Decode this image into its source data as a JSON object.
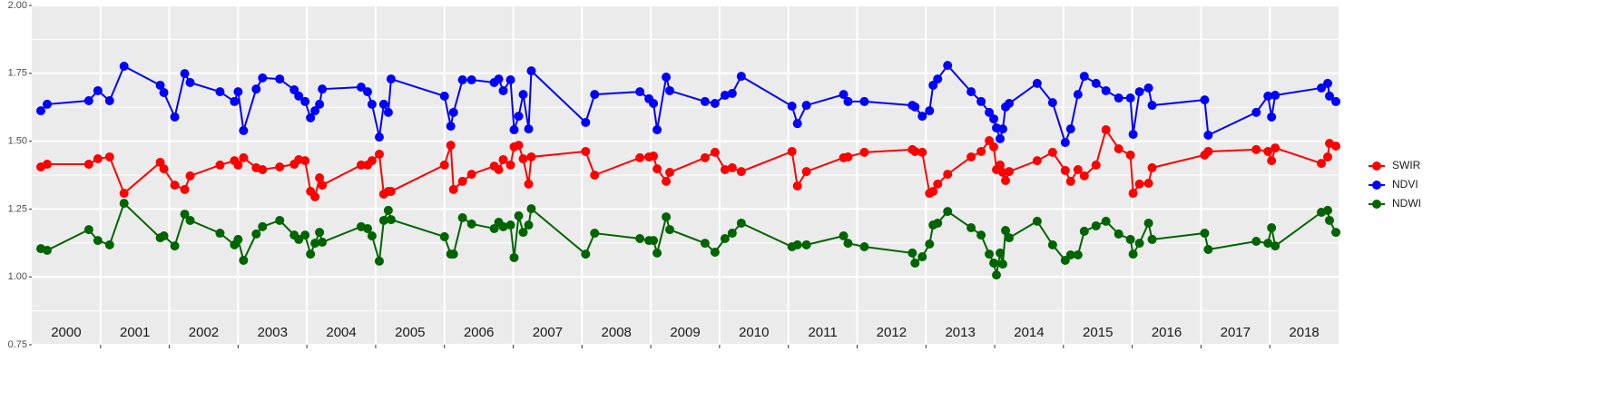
{
  "chart_data": {
    "type": "line",
    "x": [
      2000.132,
      2000.224,
      2000.829,
      2000.961,
      2001.132,
      2001.342,
      2001.868,
      2001.921,
      2002.079,
      2002.224,
      2002.303,
      2002.737,
      2002.947,
      2003.0,
      2003.079,
      2003.263,
      2003.355,
      2003.605,
      2003.816,
      2003.882,
      2003.974,
      2004.053,
      2004.118,
      2004.184,
      2004.224,
      2004.789,
      2004.882,
      2004.947,
      2005.053,
      2005.118,
      2005.184,
      2005.224,
      2006.0,
      2006.092,
      2006.132,
      2006.263,
      2006.395,
      2006.724,
      2006.789,
      2006.855,
      2006.961,
      2007.013,
      2007.079,
      2007.145,
      2007.224,
      2007.263,
      2008.053,
      2008.184,
      2008.842,
      2008.974,
      2009.039,
      2009.092,
      2009.224,
      2009.276,
      2009.789,
      2009.934,
      2010.079,
      2010.184,
      2010.316,
      2011.053,
      2011.132,
      2011.263,
      2011.803,
      2011.868,
      2012.105,
      2012.803,
      2012.842,
      2012.947,
      2013.053,
      2013.105,
      2013.171,
      2013.316,
      2013.658,
      2013.803,
      2013.921,
      2013.987,
      2014.026,
      2014.079,
      2014.118,
      2014.158,
      2014.211,
      2014.618,
      2014.842,
      2015.026,
      2015.105,
      2015.211,
      2015.303,
      2015.474,
      2015.618,
      2015.803,
      2015.974,
      2016.013,
      2016.105,
      2016.237,
      2016.289,
      2017.053,
      2017.105,
      2017.803,
      2017.974,
      2018.026,
      2018.079,
      2018.75,
      2018.842,
      2018.868,
      2018.961
    ],
    "series": [
      {
        "name": "SWIR",
        "color": "#ff0000",
        "values": [
          1.405,
          1.415,
          1.415,
          1.435,
          1.442,
          1.308,
          1.422,
          1.398,
          1.338,
          1.322,
          1.372,
          1.412,
          1.428,
          1.412,
          1.439,
          1.402,
          1.395,
          1.405,
          1.415,
          1.432,
          1.428,
          1.315,
          1.295,
          1.365,
          1.338,
          1.412,
          1.412,
          1.428,
          1.452,
          1.305,
          1.315,
          1.315,
          1.412,
          1.485,
          1.322,
          1.352,
          1.378,
          1.408,
          1.395,
          1.432,
          1.412,
          1.479,
          1.485,
          1.435,
          1.342,
          1.442,
          1.462,
          1.375,
          1.439,
          1.442,
          1.445,
          1.398,
          1.352,
          1.385,
          1.439,
          1.459,
          1.395,
          1.402,
          1.388,
          1.462,
          1.335,
          1.388,
          1.439,
          1.442,
          1.459,
          1.469,
          1.462,
          1.459,
          1.308,
          1.315,
          1.342,
          1.378,
          1.442,
          1.462,
          1.502,
          1.479,
          1.395,
          1.412,
          1.385,
          1.355,
          1.388,
          1.428,
          1.459,
          1.392,
          1.352,
          1.395,
          1.372,
          1.412,
          1.542,
          1.472,
          1.449,
          1.308,
          1.342,
          1.345,
          1.402,
          1.449,
          1.462,
          1.469,
          1.462,
          1.428,
          1.475,
          1.418,
          1.442,
          1.492,
          1.482
        ]
      },
      {
        "name": "NDVI",
        "color": "#0000ff",
        "values": [
          1.612,
          1.636,
          1.649,
          1.686,
          1.649,
          1.776,
          1.706,
          1.679,
          1.589,
          1.749,
          1.716,
          1.682,
          1.646,
          1.682,
          1.539,
          1.692,
          1.733,
          1.729,
          1.689,
          1.666,
          1.646,
          1.586,
          1.612,
          1.636,
          1.692,
          1.699,
          1.682,
          1.636,
          1.515,
          1.636,
          1.606,
          1.729,
          1.666,
          1.555,
          1.606,
          1.726,
          1.726,
          1.716,
          1.729,
          1.686,
          1.726,
          1.542,
          1.592,
          1.672,
          1.545,
          1.759,
          1.569,
          1.672,
          1.682,
          1.656,
          1.639,
          1.542,
          1.736,
          1.686,
          1.646,
          1.639,
          1.669,
          1.676,
          1.739,
          1.629,
          1.565,
          1.632,
          1.672,
          1.646,
          1.646,
          1.632,
          1.626,
          1.592,
          1.612,
          1.706,
          1.729,
          1.779,
          1.682,
          1.646,
          1.606,
          1.582,
          1.549,
          1.509,
          1.545,
          1.626,
          1.639,
          1.713,
          1.642,
          1.495,
          1.545,
          1.672,
          1.739,
          1.713,
          1.686,
          1.659,
          1.659,
          1.525,
          1.682,
          1.696,
          1.632,
          1.652,
          1.522,
          1.606,
          1.666,
          1.589,
          1.669,
          1.696,
          1.713,
          1.666,
          1.646
        ]
      },
      {
        "name": "NDWI",
        "color": "#006400",
        "values": [
          1.104,
          1.098,
          1.174,
          1.134,
          1.118,
          1.271,
          1.144,
          1.151,
          1.114,
          1.231,
          1.208,
          1.161,
          1.118,
          1.138,
          1.061,
          1.158,
          1.185,
          1.208,
          1.154,
          1.138,
          1.154,
          1.084,
          1.124,
          1.164,
          1.128,
          1.185,
          1.178,
          1.151,
          1.058,
          1.208,
          1.245,
          1.211,
          1.148,
          1.084,
          1.084,
          1.218,
          1.195,
          1.178,
          1.201,
          1.185,
          1.191,
          1.071,
          1.225,
          1.164,
          1.191,
          1.251,
          1.084,
          1.161,
          1.141,
          1.134,
          1.134,
          1.088,
          1.221,
          1.174,
          1.124,
          1.091,
          1.141,
          1.161,
          1.198,
          1.111,
          1.118,
          1.118,
          1.151,
          1.124,
          1.111,
          1.088,
          1.051,
          1.074,
          1.121,
          1.191,
          1.198,
          1.241,
          1.181,
          1.154,
          1.084,
          1.051,
          1.007,
          1.088,
          1.047,
          1.171,
          1.144,
          1.205,
          1.118,
          1.061,
          1.081,
          1.081,
          1.168,
          1.188,
          1.205,
          1.158,
          1.138,
          1.084,
          1.124,
          1.198,
          1.138,
          1.161,
          1.101,
          1.131,
          1.124,
          1.181,
          1.114,
          1.238,
          1.245,
          1.208,
          1.164
        ]
      }
    ],
    "xlim": [
      2000,
      2019
    ],
    "xticks": [
      2001,
      2002,
      2003,
      2004,
      2005,
      2006,
      2007,
      2008,
      2009,
      2010,
      2011,
      2012,
      2013,
      2014,
      2015,
      2016,
      2017,
      2018
    ],
    "year_labels": [
      2000,
      2001,
      2002,
      2003,
      2004,
      2005,
      2006,
      2007,
      2008,
      2009,
      2010,
      2011,
      2012,
      2013,
      2014,
      2015,
      2016,
      2017,
      2018
    ],
    "ylim": [
      0.75,
      2.0
    ],
    "yticks": [
      {
        "value": 0.75,
        "label": "0.75"
      },
      {
        "value": 1.0,
        "label": "1.00"
      },
      {
        "value": 1.25,
        "label": "1.25"
      },
      {
        "value": 1.5,
        "label": "1.50"
      },
      {
        "value": 1.75,
        "label": "1.75"
      },
      {
        "value": 2.0,
        "label": "2.00"
      }
    ],
    "grid": true,
    "legend": "right"
  }
}
